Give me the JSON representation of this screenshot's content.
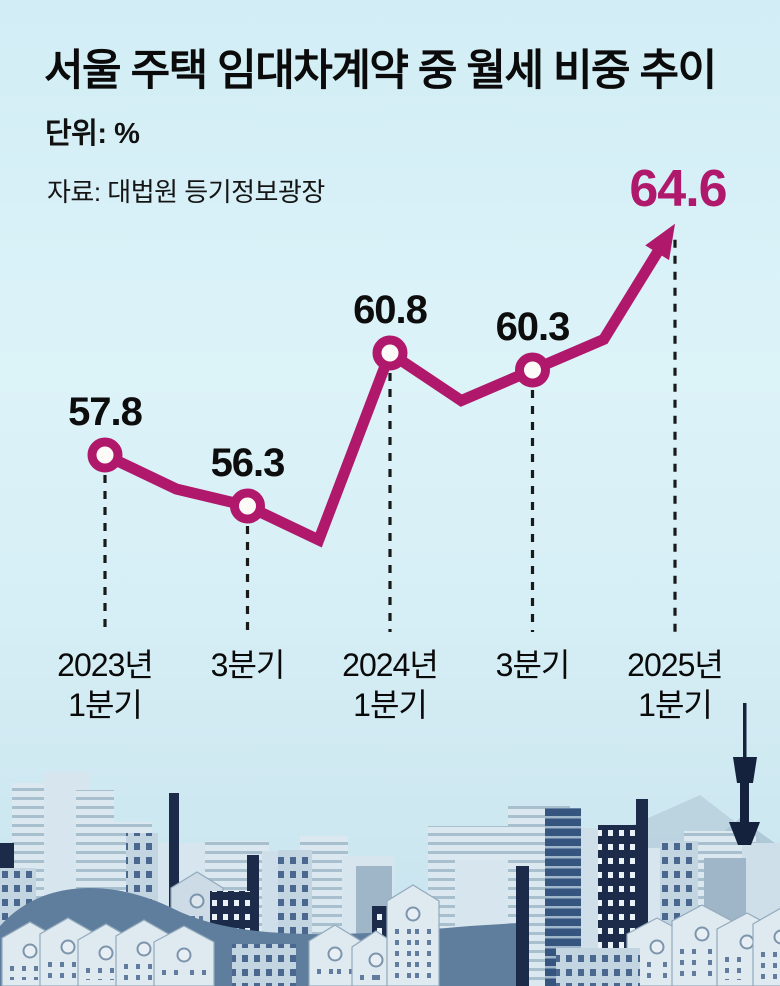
{
  "header": {
    "title": "서울 주택 임대차계약 중 월세 비중 추이",
    "unit_label": "단위: %",
    "source_label": "자료: 대법원 등기정보광장"
  },
  "colors": {
    "line": "#b0186b",
    "highlight_text": "#b0186b",
    "value_text": "#0d0d0d",
    "dash_guide": "#191919",
    "background_top": "#d2edf6",
    "background_bottom": "#c7e3ee"
  },
  "chart_data": {
    "type": "line",
    "title": "서울 주택 임대차계약 중 월세 비중 추이",
    "unit": "%",
    "source": "대법원 등기정보광장",
    "legend": "none",
    "grid": false,
    "value_axis_visible": false,
    "ylim_approx": [
      54,
      66
    ],
    "x_tick_labels": [
      [
        "2023년",
        "1분기"
      ],
      [
        "3분기"
      ],
      [
        "2024년",
        "1분기"
      ],
      [
        "3분기"
      ],
      [
        "2025년",
        "1분기"
      ]
    ],
    "points": [
      {
        "quarter": "2023년 1분기",
        "value": 57.8,
        "labeled": true,
        "label": "57.8"
      },
      {
        "quarter": "2023년 2분기",
        "value": 56.8,
        "labeled": false,
        "estimated": true
      },
      {
        "quarter": "2023년 3분기",
        "value": 56.3,
        "labeled": true,
        "label": "56.3"
      },
      {
        "quarter": "2023년 4분기",
        "value": 55.3,
        "labeled": false,
        "estimated": true
      },
      {
        "quarter": "2024년 1분기",
        "value": 60.8,
        "labeled": true,
        "label": "60.8"
      },
      {
        "quarter": "2024년 2분기",
        "value": 59.4,
        "labeled": false,
        "estimated": true
      },
      {
        "quarter": "2024년 3분기",
        "value": 60.3,
        "labeled": true,
        "label": "60.3"
      },
      {
        "quarter": "2024년 4분기",
        "value": 61.2,
        "labeled": false,
        "estimated": true
      },
      {
        "quarter": "2025년 1분기",
        "value": 64.6,
        "labeled": true,
        "label": "64.6",
        "highlight": true,
        "arrow": true
      }
    ]
  }
}
